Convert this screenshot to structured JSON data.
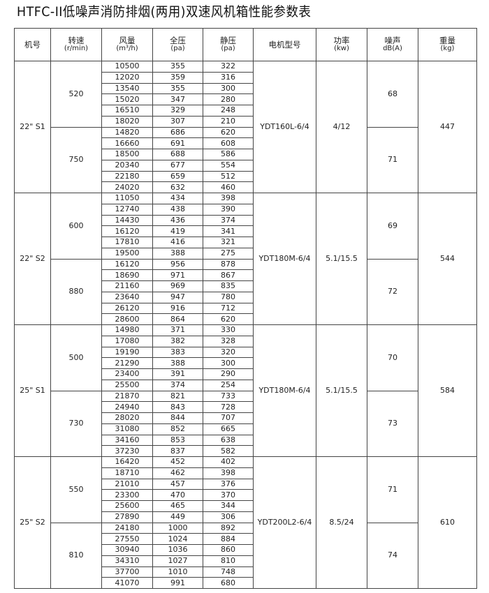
{
  "title": "HTFC-II低噪声消防排烟(两用)双速风机箱性能参数表",
  "headers": [
    {
      "label": "机号",
      "unit": ""
    },
    {
      "label": "转速",
      "unit": "(r/min)"
    },
    {
      "label": "风量",
      "unit": "(m³/h)"
    },
    {
      "label": "全压",
      "unit": "(pa)"
    },
    {
      "label": "静压",
      "unit": "(pa)"
    },
    {
      "label": "电机型号",
      "unit": ""
    },
    {
      "label": "功率",
      "unit": "(kw)"
    },
    {
      "label": "噪声",
      "unit": "dB(A)"
    },
    {
      "label": "重量",
      "unit": "(kg)"
    }
  ],
  "models": [
    {
      "model": "22\" S1",
      "motor": "YDT160L-6/4",
      "power": "4/12",
      "weight": "447",
      "speeds": [
        {
          "speed": "520",
          "noise": "68",
          "rows": [
            [
              "10500",
              "355",
              "322"
            ],
            [
              "12020",
              "359",
              "316"
            ],
            [
              "13540",
              "355",
              "300"
            ],
            [
              "15020",
              "347",
              "280"
            ],
            [
              "16510",
              "329",
              "248"
            ],
            [
              "18020",
              "307",
              "210"
            ]
          ]
        },
        {
          "speed": "750",
          "noise": "71",
          "rows": [
            [
              "14820",
              "686",
              "620"
            ],
            [
              "16660",
              "691",
              "608"
            ],
            [
              "18500",
              "688",
              "586"
            ],
            [
              "20340",
              "677",
              "554"
            ],
            [
              "22180",
              "659",
              "512"
            ],
            [
              "24020",
              "632",
              "460"
            ]
          ]
        }
      ]
    },
    {
      "model": "22\" S2",
      "motor": "YDT180M-6/4",
      "power": "5.1/15.5",
      "weight": "544",
      "speeds": [
        {
          "speed": "600",
          "noise": "69",
          "rows": [
            [
              "11050",
              "434",
              "398"
            ],
            [
              "12740",
              "438",
              "390"
            ],
            [
              "14430",
              "436",
              "374"
            ],
            [
              "16120",
              "419",
              "341"
            ],
            [
              "17810",
              "416",
              "321"
            ],
            [
              "19500",
              "388",
              "275"
            ]
          ]
        },
        {
          "speed": "880",
          "noise": "72",
          "rows": [
            [
              "16120",
              "956",
              "878"
            ],
            [
              "18690",
              "971",
              "867"
            ],
            [
              "21160",
              "969",
              "835"
            ],
            [
              "23640",
              "947",
              "780"
            ],
            [
              "26120",
              "916",
              "712"
            ],
            [
              "28600",
              "864",
              "620"
            ]
          ]
        }
      ]
    },
    {
      "model": "25\" S1",
      "motor": "YDT180M-6/4",
      "power": "5.1/15.5",
      "weight": "584",
      "speeds": [
        {
          "speed": "500",
          "noise": "70",
          "rows": [
            [
              "14980",
              "371",
              "330"
            ],
            [
              "17080",
              "382",
              "328"
            ],
            [
              "19190",
              "383",
              "320"
            ],
            [
              "21290",
              "388",
              "300"
            ],
            [
              "23400",
              "391",
              "290"
            ],
            [
              "25500",
              "374",
              "254"
            ]
          ]
        },
        {
          "speed": "730",
          "noise": "73",
          "rows": [
            [
              "21870",
              "821",
              "733"
            ],
            [
              "24940",
              "843",
              "728"
            ],
            [
              "28020",
              "844",
              "707"
            ],
            [
              "31080",
              "852",
              "665"
            ],
            [
              "34160",
              "853",
              "638"
            ],
            [
              "37230",
              "837",
              "582"
            ]
          ]
        }
      ]
    },
    {
      "model": "25\" S2",
      "motor": "YDT200L2-6/4",
      "power": "8.5/24",
      "weight": "610",
      "speeds": [
        {
          "speed": "550",
          "noise": "71",
          "rows": [
            [
              "16420",
              "452",
              "402"
            ],
            [
              "18710",
              "462",
              "398"
            ],
            [
              "21010",
              "457",
              "376"
            ],
            [
              "23300",
              "470",
              "370"
            ],
            [
              "25600",
              "465",
              "344"
            ],
            [
              "27890",
              "449",
              "306"
            ]
          ]
        },
        {
          "speed": "810",
          "noise": "74",
          "rows": [
            [
              "24180",
              "1000",
              "892"
            ],
            [
              "27550",
              "1024",
              "884"
            ],
            [
              "30940",
              "1036",
              "860"
            ],
            [
              "34310",
              "1027",
              "810"
            ],
            [
              "37700",
              "1010",
              "748"
            ],
            [
              "41070",
              "991",
              "680"
            ]
          ]
        }
      ]
    }
  ]
}
